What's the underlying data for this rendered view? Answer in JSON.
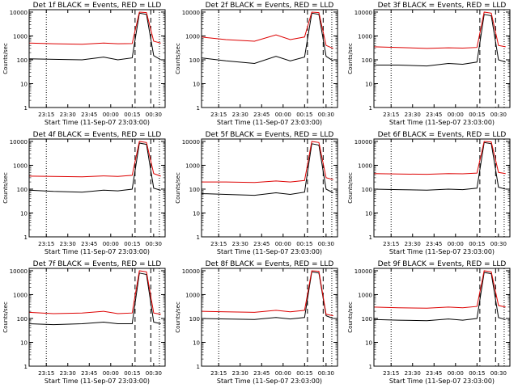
{
  "figure": {
    "xlabel": "Start Time (11-Sep-07 23:03:00)",
    "ylabel": "Counts/sec",
    "y_ticks": [
      "1",
      "10",
      "100",
      "1000",
      "10000"
    ],
    "x_ticks": [
      "23:15",
      "23:30",
      "23:45",
      "00:00",
      "00:15",
      "00:30"
    ],
    "colors": {
      "events": "#000000",
      "lld": "#dd0000",
      "axis": "#000000",
      "background": "#ffffff"
    }
  },
  "chart_data": [
    {
      "type": "line",
      "title": "Det 1f BLACK = Events, RED = LLD",
      "xlabel": "Start Time (11-Sep-07 23:03:00)",
      "ylabel": "Counts/sec",
      "y_scale": "log",
      "ylim": [
        1,
        10000
      ],
      "x": [
        "23:03",
        "23:20",
        "23:40",
        "23:55",
        "00:05",
        "00:15",
        "00:20",
        "00:25",
        "00:30",
        "00:35"
      ],
      "series": [
        {
          "name": "Events",
          "color": "#000000",
          "values": [
            110,
            105,
            100,
            130,
            100,
            120,
            9000,
            8000,
            150,
            100
          ]
        },
        {
          "name": "LLD",
          "color": "#dd0000",
          "values": [
            500,
            470,
            450,
            500,
            470,
            480,
            10000,
            9500,
            600,
            500
          ]
        }
      ],
      "dotted_lines_x": [
        "23:15",
        "00:34"
      ],
      "dashed_lines_x": [
        "00:17",
        "00:28"
      ],
      "grid": false
    },
    {
      "type": "line",
      "title": "Det 2f BLACK = Events, RED = LLD",
      "xlabel": "Start Time (11-Sep-07 23:03:00)",
      "ylabel": "Counts/sec",
      "y_scale": "log",
      "ylim": [
        1,
        10000
      ],
      "x": [
        "23:03",
        "23:20",
        "23:40",
        "23:55",
        "00:05",
        "00:15",
        "00:20",
        "00:25",
        "00:30",
        "00:35"
      ],
      "series": [
        {
          "name": "Events",
          "color": "#000000",
          "values": [
            120,
            90,
            70,
            140,
            90,
            130,
            9000,
            8000,
            140,
            90
          ]
        },
        {
          "name": "LLD",
          "color": "#dd0000",
          "values": [
            900,
            700,
            600,
            1100,
            700,
            900,
            10000,
            9500,
            400,
            300
          ]
        }
      ],
      "dotted_lines_x": [
        "23:15",
        "00:34"
      ],
      "dashed_lines_x": [
        "00:17",
        "00:28"
      ],
      "grid": false
    },
    {
      "type": "line",
      "title": "Det 3f BLACK = Events, RED = LLD",
      "xlabel": "Start Time (11-Sep-07 23:03:00)",
      "ylabel": "Counts/sec",
      "y_scale": "log",
      "ylim": [
        1,
        10000
      ],
      "x": [
        "23:03",
        "23:20",
        "23:40",
        "23:55",
        "00:05",
        "00:15",
        "00:20",
        "00:25",
        "00:30",
        "00:35"
      ],
      "series": [
        {
          "name": "Events",
          "color": "#000000",
          "values": [
            60,
            60,
            55,
            70,
            65,
            80,
            8000,
            7000,
            100,
            80
          ]
        },
        {
          "name": "LLD",
          "color": "#dd0000",
          "values": [
            350,
            330,
            300,
            320,
            310,
            330,
            10000,
            9000,
            400,
            350
          ]
        }
      ],
      "dotted_lines_x": [
        "23:15",
        "00:34"
      ],
      "dashed_lines_x": [
        "00:17",
        "00:28"
      ],
      "grid": false
    },
    {
      "type": "line",
      "title": "Det 4f BLACK = Events, RED = LLD",
      "xlabel": "Start Time (11-Sep-07 23:03:00)",
      "ylabel": "Counts/sec",
      "y_scale": "log",
      "ylim": [
        1,
        10000
      ],
      "x": [
        "23:03",
        "23:20",
        "23:40",
        "23:55",
        "00:05",
        "00:15",
        "00:20",
        "00:25",
        "00:30",
        "00:35"
      ],
      "series": [
        {
          "name": "Events",
          "color": "#000000",
          "values": [
            90,
            80,
            75,
            90,
            85,
            100,
            8500,
            7500,
            110,
            90
          ]
        },
        {
          "name": "LLD",
          "color": "#dd0000",
          "values": [
            350,
            340,
            330,
            360,
            340,
            380,
            10000,
            9000,
            450,
            350
          ]
        }
      ],
      "dotted_lines_x": [
        "23:15",
        "00:34"
      ],
      "dashed_lines_x": [
        "00:17",
        "00:28"
      ],
      "grid": false
    },
    {
      "type": "line",
      "title": "Det 5f BLACK = Events, RED = LLD",
      "xlabel": "Start Time (11-Sep-07 23:03:00)",
      "ylabel": "Counts/sec",
      "y_scale": "log",
      "ylim": [
        1,
        10000
      ],
      "x": [
        "23:03",
        "23:20",
        "23:40",
        "23:55",
        "00:05",
        "00:15",
        "00:20",
        "00:25",
        "00:30",
        "00:35"
      ],
      "series": [
        {
          "name": "Events",
          "color": "#000000",
          "values": [
            65,
            60,
            55,
            70,
            60,
            75,
            8000,
            7000,
            100,
            70
          ]
        },
        {
          "name": "LLD",
          "color": "#dd0000",
          "values": [
            200,
            200,
            190,
            220,
            200,
            230,
            10000,
            9000,
            300,
            250
          ]
        }
      ],
      "dotted_lines_x": [
        "23:15",
        "00:34"
      ],
      "dashed_lines_x": [
        "00:17",
        "00:28"
      ],
      "grid": false
    },
    {
      "type": "line",
      "title": "Det 6f BLACK = Events, RED = LLD",
      "xlabel": "Start Time (11-Sep-07 23:03:00)",
      "ylabel": "Counts/sec",
      "y_scale": "log",
      "ylim": [
        1,
        10000
      ],
      "x": [
        "23:03",
        "23:20",
        "23:40",
        "23:55",
        "00:05",
        "00:15",
        "00:20",
        "00:25",
        "00:30",
        "00:35"
      ],
      "series": [
        {
          "name": "Events",
          "color": "#000000",
          "values": [
            100,
            95,
            90,
            100,
            95,
            110,
            9000,
            8000,
            120,
            100
          ]
        },
        {
          "name": "LLD",
          "color": "#dd0000",
          "values": [
            450,
            430,
            420,
            450,
            440,
            470,
            10000,
            9500,
            500,
            450
          ]
        }
      ],
      "dotted_lines_x": [
        "23:15",
        "00:34"
      ],
      "dashed_lines_x": [
        "00:17",
        "00:28"
      ],
      "grid": false
    },
    {
      "type": "line",
      "title": "Det 7f BLACK = Events, RED = LLD",
      "xlabel": "Start Time (11-Sep-07 23:03:00)",
      "ylabel": "Counts/sec",
      "y_scale": "log",
      "ylim": [
        1,
        10000
      ],
      "x": [
        "23:03",
        "23:20",
        "23:40",
        "23:55",
        "00:05",
        "00:15",
        "00:20",
        "00:25",
        "00:30",
        "00:35"
      ],
      "series": [
        {
          "name": "Events",
          "color": "#000000",
          "values": [
            60,
            55,
            60,
            70,
            60,
            60,
            8000,
            7000,
            70,
            60
          ]
        },
        {
          "name": "LLD",
          "color": "#dd0000",
          "values": [
            180,
            160,
            170,
            200,
            160,
            170,
            10000,
            9000,
            170,
            150
          ]
        }
      ],
      "dotted_lines_x": [
        "23:15",
        "00:34"
      ],
      "dashed_lines_x": [
        "00:17",
        "00:28"
      ],
      "grid": false
    },
    {
      "type": "line",
      "title": "Det 8f BLACK = Events, RED = LLD",
      "xlabel": "Start Time (11-Sep-07 23:03:00)",
      "ylabel": "Counts/sec",
      "y_scale": "log",
      "ylim": [
        1,
        10000
      ],
      "x": [
        "23:03",
        "23:20",
        "23:40",
        "23:55",
        "00:05",
        "00:15",
        "00:20",
        "00:25",
        "00:30",
        "00:35"
      ],
      "series": [
        {
          "name": "Events",
          "color": "#000000",
          "values": [
            100,
            95,
            90,
            110,
            95,
            110,
            9000,
            8000,
            130,
            100
          ]
        },
        {
          "name": "LLD",
          "color": "#dd0000",
          "values": [
            200,
            190,
            180,
            220,
            190,
            220,
            10000,
            9500,
            150,
            130
          ]
        }
      ],
      "dotted_lines_x": [
        "23:15",
        "00:34"
      ],
      "dashed_lines_x": [
        "00:17",
        "00:28"
      ],
      "grid": false
    },
    {
      "type": "line",
      "title": "Det 9f BLACK = Events, RED = LLD",
      "xlabel": "Start Time (11-Sep-07 23:03:00)",
      "ylabel": "Counts/sec",
      "y_scale": "log",
      "ylim": [
        1,
        10000
      ],
      "x": [
        "23:03",
        "23:20",
        "23:40",
        "23:55",
        "00:05",
        "00:15",
        "00:20",
        "00:25",
        "00:30",
        "00:35"
      ],
      "series": [
        {
          "name": "Events",
          "color": "#000000",
          "values": [
            90,
            85,
            80,
            95,
            85,
            100,
            8500,
            7500,
            110,
            90
          ]
        },
        {
          "name": "LLD",
          "color": "#dd0000",
          "values": [
            300,
            280,
            270,
            300,
            280,
            320,
            10000,
            9000,
            350,
            300
          ]
        }
      ],
      "dotted_lines_x": [
        "23:15",
        "00:34"
      ],
      "dashed_lines_x": [
        "00:17",
        "00:28"
      ],
      "grid": false
    }
  ]
}
